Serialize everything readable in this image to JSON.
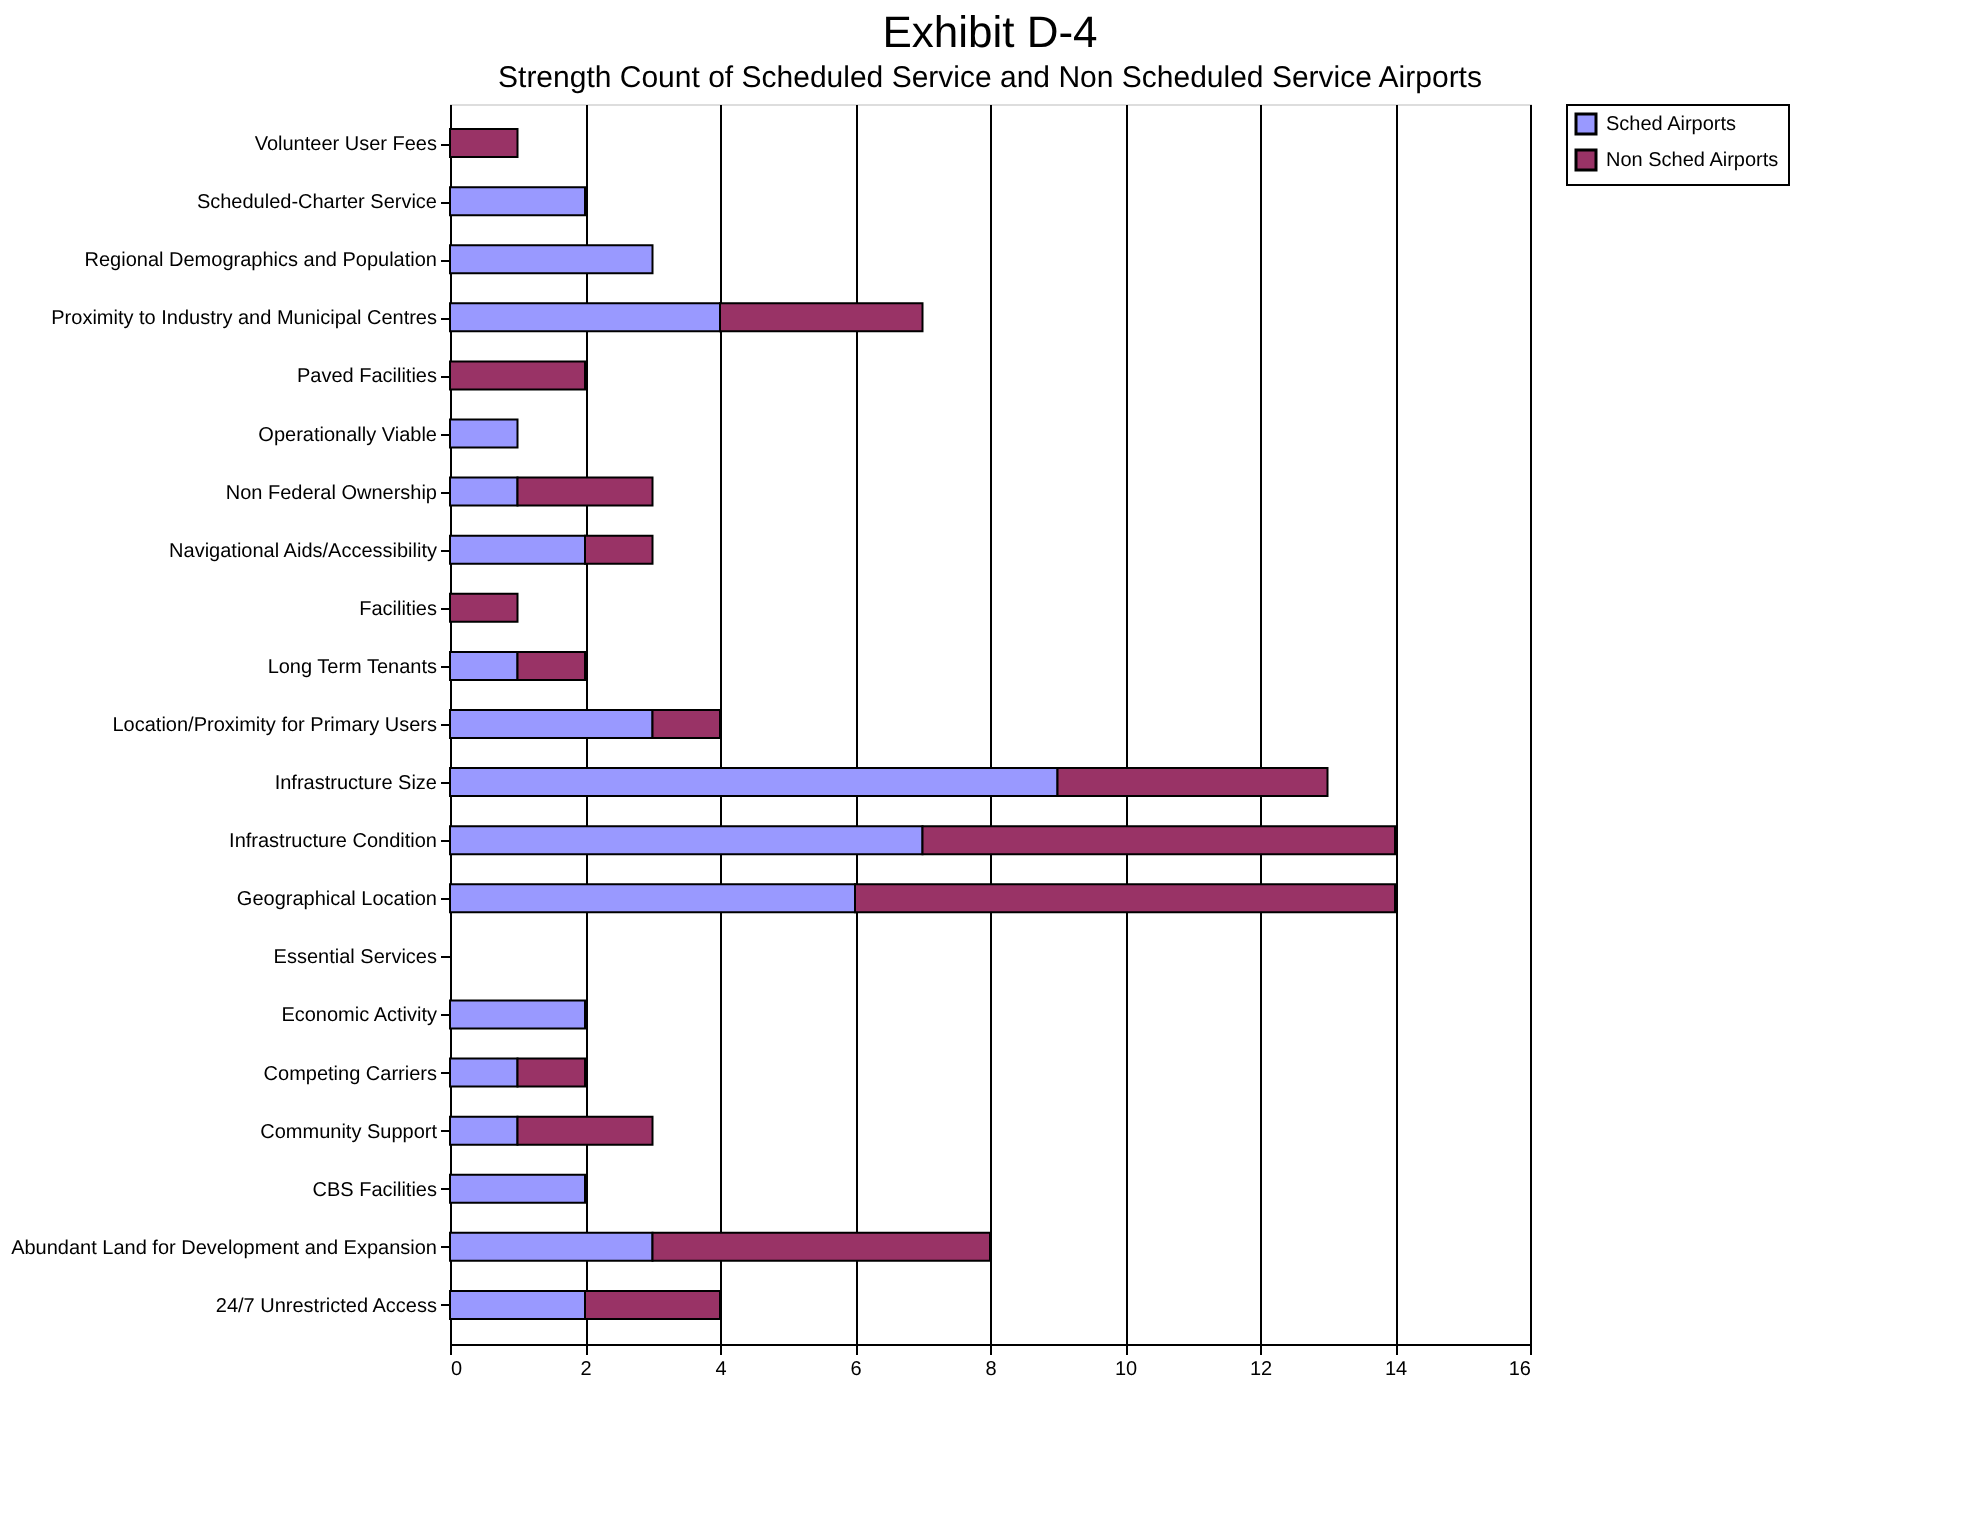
{
  "chart_data": {
    "type": "bar",
    "orientation": "horizontal",
    "stacked": true,
    "title": "Exhibit D-4",
    "subtitle": "Strength Count of Scheduled Service and Non Scheduled Service Airports",
    "categories": [
      "Volunteer User Fees",
      "Scheduled-Charter Service",
      "Regional Demographics and Population",
      "Proximity to Industry and Municipal Centres",
      "Paved Facilities",
      "Operationally Viable",
      "Non Federal Ownership",
      "Navigational Aids/Accessibility",
      "Facilities",
      "Long Term Tenants",
      "Location/Proximity for Primary Users",
      "Infrastructure Size",
      "Infrastructure Condition",
      "Geographical Location",
      "Essential Services",
      "Economic Activity",
      "Competing Carriers",
      "Community Support",
      "CBS Facilities",
      "Abundant Land for Development and Expansion",
      "24/7 Unrestricted Access"
    ],
    "series": [
      {
        "name": "Sched Airports",
        "color": "#9999ff",
        "values": [
          0,
          2,
          3,
          4,
          0,
          1,
          1,
          2,
          0,
          1,
          3,
          9,
          7,
          6,
          0,
          2,
          1,
          1,
          2,
          3,
          2
        ]
      },
      {
        "name": "Non Sched Airports",
        "color": "#993366",
        "values": [
          1,
          0,
          0,
          3,
          2,
          0,
          2,
          1,
          1,
          1,
          1,
          4,
          7,
          8,
          0,
          0,
          1,
          2,
          0,
          5,
          2
        ]
      }
    ],
    "xlim": [
      0,
      16
    ],
    "xticks": [
      0,
      2,
      4,
      6,
      8,
      10,
      12,
      14,
      16
    ],
    "grid": "x",
    "legend": "right"
  }
}
